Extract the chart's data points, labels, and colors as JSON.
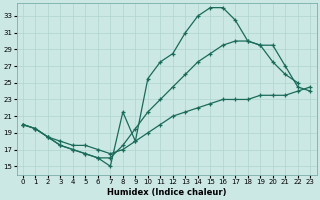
{
  "xlabel": "Humidex (Indice chaleur)",
  "bg_color": "#cce8e4",
  "line_color": "#1a6b5a",
  "grid_color": "#afd4cf",
  "xlim": [
    -0.5,
    23.5
  ],
  "ylim": [
    14.0,
    34.5
  ],
  "yticks": [
    15,
    17,
    19,
    21,
    23,
    25,
    27,
    29,
    31,
    33
  ],
  "xticks": [
    0,
    1,
    2,
    3,
    4,
    5,
    6,
    7,
    8,
    9,
    10,
    11,
    12,
    13,
    14,
    15,
    16,
    17,
    18,
    19,
    20,
    21,
    22,
    23
  ],
  "line1_x": [
    0,
    1,
    2,
    3,
    4,
    5,
    6,
    7,
    8,
    9,
    10,
    11,
    12,
    13,
    14,
    15,
    16,
    17,
    18,
    19,
    20,
    21,
    22
  ],
  "line1_y": [
    20.0,
    19.5,
    18.5,
    17.5,
    17.0,
    16.5,
    16.0,
    15.0,
    21.5,
    18.0,
    25.5,
    27.5,
    28.5,
    31.0,
    33.0,
    34.0,
    34.0,
    32.5,
    30.0,
    29.5,
    27.5,
    26.0,
    25.0
  ],
  "line2_x": [
    0,
    1,
    2,
    3,
    4,
    5,
    6,
    7,
    8,
    9,
    10,
    11,
    12,
    13,
    14,
    15,
    16,
    17,
    18,
    19,
    20,
    21,
    22,
    23
  ],
  "line2_y": [
    20.0,
    19.5,
    18.5,
    17.5,
    17.0,
    16.5,
    16.0,
    16.0,
    17.5,
    19.5,
    21.5,
    23.0,
    24.5,
    26.0,
    27.5,
    28.5,
    29.5,
    30.0,
    30.0,
    29.5,
    29.5,
    27.0,
    24.5,
    24.0
  ],
  "line3_x": [
    0,
    1,
    2,
    3,
    4,
    5,
    6,
    7,
    8,
    9,
    10,
    11,
    12,
    13,
    14,
    15,
    16,
    17,
    18,
    19,
    20,
    21,
    22,
    23
  ],
  "line3_y": [
    20.0,
    19.5,
    18.5,
    18.0,
    17.5,
    17.5,
    17.0,
    16.5,
    17.0,
    18.0,
    19.0,
    20.0,
    21.0,
    21.5,
    22.0,
    22.5,
    23.0,
    23.0,
    23.0,
    23.5,
    23.5,
    23.5,
    24.0,
    24.5
  ]
}
